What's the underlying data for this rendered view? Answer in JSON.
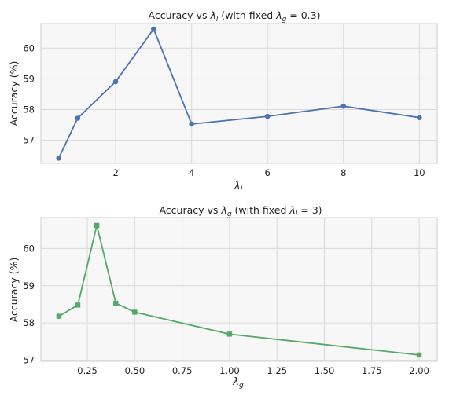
{
  "chart_data": [
    {
      "type": "line",
      "title": "Accuracy vs λ_l (with fixed λ_g = 0.3)",
      "title_parts": {
        "pre": "Accuracy vs ",
        "sym": "λ",
        "sub": "l",
        "mid": " (with fixed ",
        "sym2": "λ",
        "sub2": "g",
        "post": " = 0.3)"
      },
      "xlabel": {
        "sym": "λ",
        "sub": "l"
      },
      "ylabel": "Accuracy (%)",
      "color": "#4c72b0",
      "marker": "circle",
      "x": [
        0.5,
        1,
        2,
        3,
        4,
        6,
        8,
        10
      ],
      "y": [
        56.42,
        57.72,
        58.91,
        60.62,
        57.53,
        57.78,
        58.11,
        57.74
      ],
      "xlim": [
        0.03,
        10.47
      ],
      "ylim": [
        56.25,
        60.8
      ],
      "xticks": [
        "2",
        "4",
        "6",
        "8",
        "10"
      ],
      "xtick_values": [
        2,
        4,
        6,
        8,
        10
      ],
      "yticks": [
        "57",
        "58",
        "59",
        "60"
      ],
      "ytick_values": [
        57,
        58,
        59,
        60
      ],
      "grid": true
    },
    {
      "type": "line",
      "title": "Accuracy vs λ_g (with fixed λ_l = 3)",
      "title_parts": {
        "pre": "Accuracy vs ",
        "sym": "λ",
        "sub": "g",
        "mid": " (with fixed ",
        "sym2": "λ",
        "sub2": "l",
        "post": " = 3)"
      },
      "xlabel": {
        "sym": "λ",
        "sub": "g"
      },
      "ylabel": "Accuracy (%)",
      "color": "#55a868",
      "marker": "square",
      "x": [
        0.1,
        0.2,
        0.3,
        0.4,
        0.5,
        1.0,
        2.0
      ],
      "y": [
        58.18,
        58.48,
        60.62,
        58.53,
        58.29,
        57.7,
        57.14
      ],
      "xlim": [
        0.005,
        2.095
      ],
      "ylim": [
        56.97,
        60.83
      ],
      "xticks": [
        "0.25",
        "0.50",
        "0.75",
        "1.00",
        "1.25",
        "1.50",
        "1.75",
        "2.00"
      ],
      "xtick_values": [
        0.25,
        0.5,
        0.75,
        1.0,
        1.25,
        1.5,
        1.75,
        2.0
      ],
      "yticks": [
        "57",
        "58",
        "59",
        "60"
      ],
      "ytick_values": [
        57,
        58,
        59,
        60
      ],
      "grid": true
    }
  ]
}
